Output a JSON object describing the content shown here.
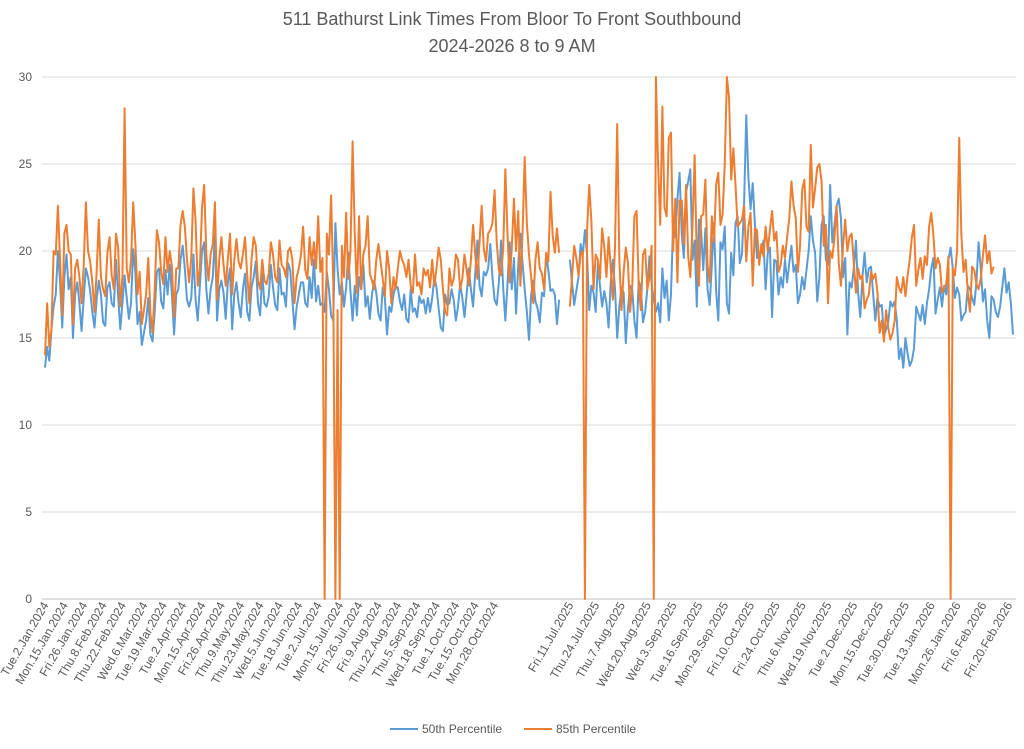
{
  "chart_data": {
    "type": "line",
    "title_line1": "511 Bathurst Link Times From Bloor To Front Southbound",
    "title_line2": "2024-2026 8 to 9 AM",
    "xlabel": "",
    "ylabel": "",
    "ylim": [
      0,
      30
    ],
    "y_ticks": [
      0,
      5,
      10,
      15,
      20,
      25,
      30
    ],
    "grid": true,
    "legend_position": "bottom",
    "x_tick_labels": [
      "Tue.2.Jan.2024",
      "Mon.15.Jan.2024",
      "Fri.26.Jan.2024",
      "Thu.8.Feb.2024",
      "Thu.22.Feb.2024",
      "Wed.6.Mar.2024",
      "Tue.19.Mar.2024",
      "Tue.2.Apr.2024",
      "Mon.15.Apr.2024",
      "Fri.26.Apr.2024",
      "Thu.9.May.2024",
      "Thu.23.May.2024",
      "Wed.5.Jun.2024",
      "Tue.18.Jun.2024",
      "Tue.2.Jul.2024",
      "Mon.15.Jul.2024",
      "Fri.26.Jul.2024",
      "Fri.9.Aug.2024",
      "Thu.22.Aug.2024",
      "Thu.5.Sep.2024",
      "Wed.18.Sep.2024",
      "Tue.1.Oct.2024",
      "Tue.15.Oct.2024",
      "Mon.28.Oct.2024",
      "Fri.11.Jul.2025",
      "Thu.24.Jul.2025",
      "Thu.7.Aug.2025",
      "Wed.20.Aug.2025",
      "Wed.3.Sep.2025",
      "Tue.16.Sep.2025",
      "Mon.29.Sep.2025",
      "Fri.10.Oct.2025",
      "Fri.24.Oct.2025",
      "Thu.6.Nov.2025",
      "Wed.19.Nov.2025",
      "Tue.2.Dec.2025",
      "Mon.15.Dec.2025",
      "Tue.30.Dec.2025",
      "Tue.13.Jan.2026",
      "Mon.26.Jan.2026",
      "Fri.6.Feb.2026",
      "Fri.20.Feb.2026"
    ],
    "series": [
      {
        "name": "50th Percentile",
        "color": "#5B9BD5",
        "values": [
          13.3,
          14.5,
          13.7,
          15.5,
          16.8,
          17.5,
          20.0,
          18.2,
          15.6,
          18.5,
          19.8,
          17.8,
          18.5,
          15.0,
          17.5,
          18.2,
          17.0,
          15.4,
          17.3,
          19.0,
          18.5,
          17.7,
          16.5,
          15.6,
          17.2,
          18.3,
          17.5,
          15.9,
          15.7,
          17.9,
          18.2,
          17.0,
          16.8,
          19.5,
          17.4,
          15.5,
          17.0,
          18.6,
          17.3,
          16.1,
          17.0,
          20.1,
          18.8,
          15.8,
          16.5,
          14.6,
          15.3,
          16.0,
          17.3,
          15.2,
          14.8,
          16.5,
          18.8,
          19.0,
          17.1,
          16.7,
          18.9,
          17.5,
          19.2,
          17.5,
          15.2,
          17.5,
          17.8,
          19.5,
          20.3,
          19.0,
          17.2,
          16.8,
          17.3,
          19.8,
          17.2,
          16.0,
          18.0,
          20.0,
          20.5,
          17.8,
          16.4,
          17.8,
          18.5,
          21.0,
          16.0,
          17.8,
          18.3,
          17.6,
          16.1,
          18.2,
          19.0,
          15.5,
          17.5,
          18.2,
          17.0,
          16.2,
          17.8,
          18.7,
          16.5,
          16.0,
          17.9,
          18.5,
          19.4,
          17.0,
          16.3,
          18.7,
          17.0,
          16.8,
          17.4,
          19.2,
          17.9,
          16.9,
          16.6,
          19.0,
          17.5,
          17.6,
          16.8,
          19.3,
          18.9,
          17.2,
          15.5,
          16.8,
          17.5,
          18.2,
          18.2,
          17.0,
          16.8,
          18.5,
          17.3,
          19.5,
          17.1,
          18.0,
          16.9,
          17.0,
          16.5,
          18.8,
          17.8,
          16.3,
          16.0,
          21.6,
          19.0,
          17.5,
          18.2,
          16.8,
          17.9,
          19.9,
          17.7,
          16.0,
          18.0,
          16.3,
          18.5,
          17.8,
          19.2,
          16.8,
          17.4,
          16.1,
          17.5,
          18.3,
          17.6,
          16.4,
          16.0,
          17.9,
          17.3,
          15.2,
          16.8,
          16.5,
          17.5,
          18.0,
          17.9,
          17.1,
          16.6,
          17.5,
          16.1,
          15.9,
          17.8,
          16.5,
          16.7,
          16.2,
          17.4,
          17.0,
          17.2,
          16.4,
          17.3,
          16.5,
          17.3,
          18.5,
          17.9,
          16.7,
          15.6,
          15.4,
          17.5,
          16.9,
          17.0,
          17.8,
          17.2,
          16.0,
          16.8,
          18.1,
          17.3,
          16.2,
          17.5,
          19.0,
          17.8,
          16.8,
          18.7,
          20.6,
          18.0,
          17.4,
          18.8,
          18.6,
          19.0,
          20.4,
          18.5,
          17.2,
          16.9,
          18.2,
          20.6,
          17.9,
          16.0,
          18.1,
          20.5,
          17.8,
          19.6,
          16.4,
          19.2,
          21.0,
          19.3,
          17.8,
          16.5,
          14.9,
          17.5,
          18.3,
          17.1,
          16.7,
          15.9,
          17.6,
          17.4,
          19.8,
          18.9,
          17.7,
          17.8,
          17.5,
          15.8,
          17.2,
          19.5,
          18.2,
          16.9,
          17.7,
          18.5,
          20.4,
          19.8,
          21.2,
          19.8,
          16.6,
          18.0,
          17.6,
          16.5,
          19.3,
          18.0,
          16.8,
          17.7,
          17.0,
          15.6,
          18.2,
          19.5,
          17.8,
          15.0,
          16.8,
          17.9,
          17.6,
          14.7,
          16.7,
          18.0,
          17.8,
          16.0,
          15.0,
          18.3,
          17.9,
          15.9,
          16.5,
          17.8,
          19.7,
          18.1,
          17.2,
          16.5,
          17.0,
          15.9,
          19.0,
          17.3,
          18.3,
          16.0,
          17.5,
          21.5,
          20.8,
          23.0,
          24.5,
          21.0,
          19.6,
          23.4,
          24.0,
          24.7,
          19.5,
          20.6,
          16.8,
          21.8,
          21.2,
          18.9,
          21.3,
          17.8,
          16.9,
          19.2,
          21.6,
          17.7,
          16.0,
          20.5,
          20.1,
          21.4,
          17.0,
          16.4,
          19.9,
          18.6,
          21.6,
          22.0,
          19.3,
          19.8,
          22.8,
          27.8,
          24.2,
          22.4,
          23.9,
          21.6,
          19.6,
          19.8,
          19.9,
          20.6,
          17.8,
          19.9,
          20.2,
          16.2,
          19.5,
          19.4,
          17.5,
          18.5,
          17.9,
          19.5,
          18.2,
          19.3,
          20.3,
          18.8,
          19.2,
          17.0,
          17.5,
          18.5,
          17.8,
          18.9,
          20.0,
          22.0,
          20.6,
          19.9,
          17.1,
          18.5,
          21.5,
          22.0,
          19.5,
          19.2,
          23.8,
          20.5,
          21.5,
          22.6,
          23.0,
          21.9,
          18.5,
          19.6,
          15.2,
          18.2,
          17.9,
          19.0,
          20.6,
          17.6,
          16.2,
          18.5,
          19.9,
          18.2,
          19.0,
          19.1,
          17.5,
          16.0,
          17.3,
          16.8,
          16.9,
          15.1,
          15.5,
          15.9,
          17.1,
          16.8,
          17.1,
          16.0,
          13.8,
          14.4,
          13.3,
          15.0,
          14.1,
          13.4,
          13.7,
          14.4,
          16.8,
          16.4,
          16.0,
          16.9,
          15.8,
          17.0,
          17.8,
          19.0,
          19.6,
          16.4,
          17.2,
          17.9,
          16.8,
          18.0,
          17.5,
          19.5,
          20.2,
          19.0,
          17.3,
          17.9,
          17.5,
          16.0,
          16.3,
          16.5,
          18.0,
          17.8,
          17.3,
          16.9,
          18.2,
          20.5,
          19.0,
          17.1,
          17.8,
          16.0,
          15.0,
          17.4,
          17.2,
          16.5,
          16.2,
          16.8,
          17.9,
          19.0,
          17.6,
          18.2,
          17.0,
          15.2
        ],
        "gap_after_index": 239
      },
      {
        "name": "85th Percentile",
        "color": "#ED7D31",
        "values": [
          14.0,
          17.0,
          14.5,
          15.5,
          20.0,
          19.8,
          22.6,
          19.5,
          16.3,
          21.0,
          21.5,
          20.0,
          19.8,
          15.8,
          19.0,
          19.5,
          18.5,
          17.0,
          19.2,
          22.8,
          20.0,
          19.4,
          18.2,
          16.5,
          18.8,
          21.8,
          18.5,
          17.8,
          17.4,
          19.9,
          20.8,
          18.6,
          17.8,
          21.0,
          20.2,
          16.8,
          18.5,
          28.2,
          19.0,
          18.2,
          19.5,
          22.8,
          20.5,
          17.5,
          18.8,
          15.8,
          16.6,
          17.5,
          19.6,
          16.4,
          15.3,
          17.8,
          21.2,
          20.5,
          18.8,
          18.1,
          20.8,
          18.8,
          20.0,
          19.1,
          16.2,
          19.0,
          19.0,
          21.5,
          22.3,
          21.4,
          19.5,
          18.2,
          19.6,
          23.6,
          21.7,
          18.0,
          19.0,
          22.5,
          23.8,
          19.8,
          18.3,
          19.8,
          20.4,
          22.8,
          17.2,
          19.5,
          20.8,
          19.2,
          18.0,
          19.5,
          21.0,
          17.5,
          19.5,
          20.7,
          19.4,
          19.0,
          19.8,
          20.8,
          18.6,
          17.0,
          19.5,
          20.8,
          20.3,
          18.3,
          17.8,
          19.5,
          18.3,
          18.1,
          18.7,
          20.5,
          19.8,
          18.5,
          18.2,
          20.6,
          19.2,
          19.0,
          18.5,
          20.0,
          20.2,
          19.5,
          17.0,
          18.5,
          19.0,
          19.8,
          21.4,
          18.9,
          18.4,
          20.8,
          19.2,
          20.5,
          19.0,
          22.0,
          18.8,
          19.6,
          0,
          21.0,
          19.8,
          23.2,
          18.2,
          0,
          16.6,
          0,
          20.3,
          18.5,
          22.2,
          18.4,
          20.0,
          26.3,
          21.0,
          17.6,
          22.0,
          17.8,
          19.8,
          20.3,
          22.0,
          18.7,
          18.3,
          17.8,
          19.5,
          20.4,
          19.4,
          18.4,
          17.4,
          20.0,
          19.0,
          17.0,
          18.5,
          17.8,
          19.0,
          20.0,
          19.5,
          19.2,
          18.5,
          19.5,
          18.0,
          17.6,
          19.8,
          18.0,
          18.2,
          17.5,
          19.0,
          18.6,
          18.9,
          17.9,
          19.5,
          18.0,
          19.0,
          20.2,
          19.5,
          17.8,
          16.5,
          16.3,
          19.0,
          18.0,
          18.4,
          19.8,
          19.5,
          17.8,
          18.4,
          19.8,
          18.9,
          18.0,
          19.5,
          21.5,
          19.8,
          18.4,
          20.5,
          22.6,
          20.1,
          19.4,
          21.0,
          21.2,
          21.6,
          23.5,
          20.5,
          18.9,
          18.6,
          20.1,
          24.7,
          21.0,
          18.2,
          20.2,
          23.0,
          20.0,
          22.3,
          18.0,
          21.0,
          25.4,
          21.6,
          19.8,
          18.5,
          17.0,
          19.5,
          20.5,
          19.0,
          18.7,
          17.8,
          19.9,
          19.4,
          23.4,
          20.9,
          19.9,
          21.3,
          19.9,
          16.8,
          18.5,
          20.3,
          19.6,
          18.6,
          19.8,
          20.0,
          0,
          21.2,
          23.8,
          21.7,
          17.8,
          19.8,
          19.5,
          18.4,
          21.3,
          20.2,
          18.5,
          20.8,
          19.0,
          17.2,
          20.3,
          27.3,
          19.5,
          16.6,
          18.8,
          20.2,
          19.3,
          16.5,
          18.0,
          22.0,
          22.3,
          18.0,
          16.6,
          19.8,
          20.1,
          17.8,
          18.5,
          20.3,
          0,
          30.0,
          25.0,
          21.5,
          28.3,
          22.5,
          22.0,
          26.5,
          26.8,
          20.0,
          23.0,
          18.2,
          22.9,
          22.9,
          20.4,
          23.8,
          19.7,
          18.5,
          21.4,
          25.5,
          19.5,
          18.0,
          22.0,
          22.1,
          24.1,
          19.2,
          18.2,
          22.0,
          20.5,
          23.8,
          24.5,
          21.5,
          22.1,
          25.0,
          30.0,
          28.8,
          24.1,
          25.9,
          23.8,
          21.4,
          21.6,
          21.8,
          22.6,
          19.4,
          21.4,
          22.2,
          18.0,
          21.3,
          21.2,
          19.2,
          20.4,
          19.7,
          21.4,
          20.0,
          21.2,
          22.3,
          20.6,
          21.1,
          18.8,
          19.2,
          20.3,
          19.6,
          20.8,
          21.9,
          24.0,
          22.6,
          21.9,
          18.8,
          20.3,
          23.5,
          24.1,
          21.4,
          21.1,
          26.1,
          22.5,
          23.6,
          24.8,
          25.0,
          24.0,
          20.3,
          21.5,
          17.0,
          20.0,
          19.6,
          20.8,
          22.6,
          19.3,
          18.0,
          20.3,
          21.8,
          20.0,
          20.8,
          21.0,
          19.3,
          17.6,
          19.0,
          18.4,
          18.6,
          16.7,
          17.2,
          17.5,
          18.8,
          18.4,
          18.7,
          17.6,
          15.3,
          16.0,
          14.8,
          16.6,
          15.6,
          14.9,
          15.3,
          16.0,
          18.5,
          17.9,
          17.6,
          18.5,
          17.4,
          18.6,
          19.5,
          20.8,
          21.5,
          18.0,
          18.9,
          19.6,
          18.4,
          19.7,
          19.2,
          21.4,
          22.2,
          20.9,
          19.0,
          19.6,
          19.2,
          17.6,
          17.9,
          18.1,
          19.7,
          0,
          19.0,
          18.6,
          20.0,
          26.5,
          20.9,
          18.8,
          19.5,
          17.6,
          16.5,
          19.1,
          18.9,
          18.1,
          17.8,
          18.4,
          19.7,
          20.9,
          19.3,
          20.0,
          18.7,
          19.1
        ],
        "gap_after_index": 239
      }
    ]
  }
}
